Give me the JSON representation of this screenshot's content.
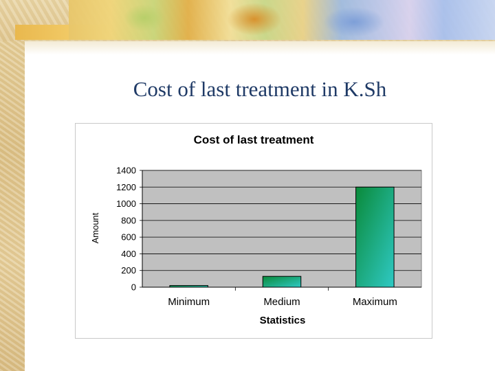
{
  "slide": {
    "title": "Cost of last treatment in K.Sh"
  },
  "colors": {
    "plot_background": "#c0c0c0",
    "bar_top": "#0a8a3a",
    "bar_bottom": "#2fc9c4",
    "title_text": "#1f3a66"
  },
  "chart_data": {
    "type": "bar",
    "title": "Cost of last treatment",
    "xlabel": "Statistics",
    "ylabel": "Amount",
    "categories": [
      "Minimum",
      "Medium",
      "Maximum"
    ],
    "values": [
      20,
      130,
      1200
    ],
    "ylim": [
      0,
      1400
    ],
    "yticks": [
      0,
      200,
      400,
      600,
      800,
      1000,
      1200,
      1400
    ],
    "grid": true,
    "legend": "none"
  }
}
